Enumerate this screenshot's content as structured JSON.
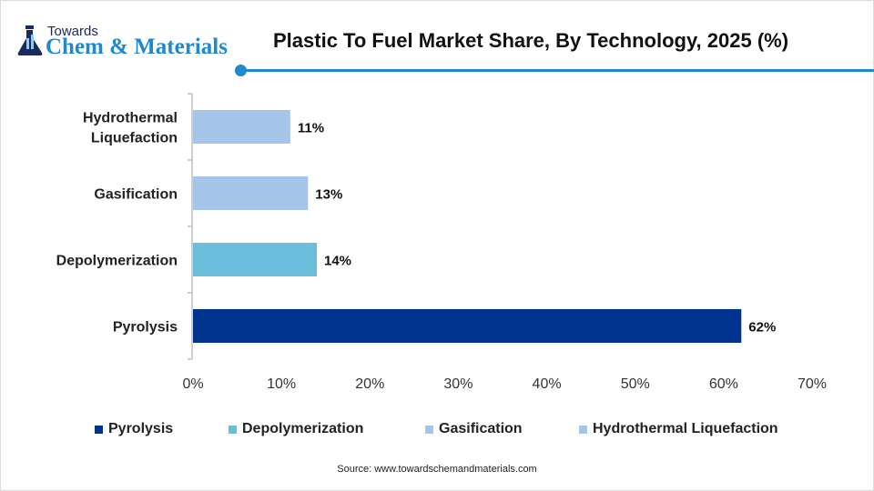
{
  "logo": {
    "line1": "Towards",
    "line2": "Chem & Materials"
  },
  "chart_data": {
    "type": "bar",
    "orientation": "horizontal",
    "title": "Plastic To Fuel Market Share, By Technology, 2025 (%)",
    "categories": [
      "Pyrolysis",
      "Depolymerization",
      "Gasification",
      "Hydrothermal Liquefaction"
    ],
    "axis_category_labels": [
      [
        "Pyrolysis"
      ],
      [
        "Depolymerization"
      ],
      [
        "Gasification"
      ],
      [
        "Hydrothermal",
        "Liquefaction"
      ]
    ],
    "values": [
      62,
      14,
      13,
      11
    ],
    "data_labels": [
      "62%",
      "14%",
      "13%",
      "11%"
    ],
    "colors": [
      "#00338d",
      "#6bbedb",
      "#a5c6e9",
      "#a5c6e9"
    ],
    "xlim": [
      0,
      70
    ],
    "xticks": [
      "0%",
      "10%",
      "20%",
      "30%",
      "40%",
      "50%",
      "60%",
      "70%"
    ],
    "grid": false,
    "legend_position": "bottom",
    "legend": [
      "Pyrolysis",
      "Depolymerization",
      "Gasification",
      "Hydrothermal Liquefaction"
    ]
  },
  "source": "Source: www.towardschemandmaterials.com"
}
